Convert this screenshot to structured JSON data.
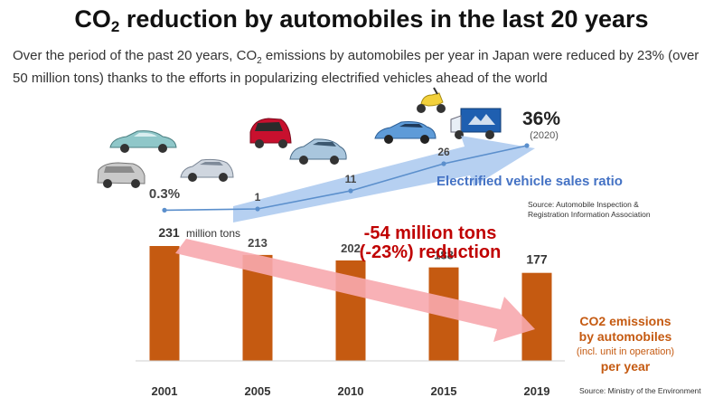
{
  "title": {
    "prefix": "CO",
    "subscript": "2",
    "suffix": " reduction by automobiles in the last 20 years"
  },
  "subtitle": {
    "part1": "Over the period of the past 20 years, CO",
    "sub": "2",
    "part2": " emissions by automobiles per year in Japan were reduced by 23% (over 50 million tons) thanks to the efforts in popularizing electrified vehicles ahead of the world"
  },
  "colors": {
    "bar": "#c55a11",
    "line": "#5b8fcc",
    "arrow_blue": "#a9c8ee",
    "arrow_red": "#f7a8ae",
    "reduction_text": "#c00000",
    "legend_orange": "#c55a11",
    "legend_blue": "#4472c4"
  },
  "chart_data": [
    {
      "type": "line",
      "title": "Electrified vehicle sales ratio",
      "unit": "%",
      "x": [
        "2001",
        "2005",
        "2010",
        "2015",
        "2020"
      ],
      "values": [
        0.3,
        1,
        11,
        26,
        36
      ],
      "labels": [
        "0.3%",
        "1",
        "11",
        "26",
        "36%"
      ],
      "final_note": "(2020)",
      "source": "Source: Automobile Inspection & Registration Information Association"
    },
    {
      "type": "bar",
      "title": "CO2 emissions by automobiles (incl. unit in operation) per year",
      "legend_lines": [
        "CO2 emissions",
        "by automobiles",
        "(incl. unit in operation)",
        "per year"
      ],
      "categories": [
        "2001",
        "2005",
        "2010",
        "2015",
        "2019"
      ],
      "values": [
        231,
        213,
        202,
        188,
        177
      ],
      "first_unit_label": "million tons",
      "ylim": [
        0,
        231
      ],
      "annotation": [
        "-54 million tons",
        "(-23%) reduction"
      ],
      "source": "Source: Ministry of the Environment"
    }
  ],
  "icons": [
    "sedan-car-icon",
    "suv-car-icon",
    "hatchback-car-icon",
    "red-kei-car-icon",
    "compact-ev-car-icon",
    "fuel-cell-car-icon",
    "scooter-icon",
    "delivery-truck-icon"
  ]
}
